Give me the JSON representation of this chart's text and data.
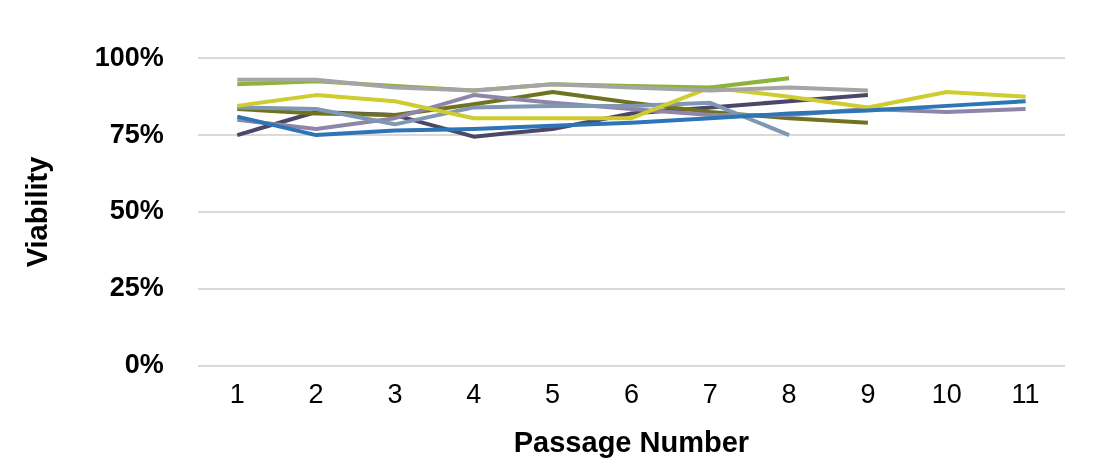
{
  "chart_data": {
    "type": "line",
    "xlabel": "Passage Number",
    "ylabel": "Viability",
    "categories": [
      "1",
      "2",
      "3",
      "4",
      "5",
      "6",
      "7",
      "8",
      "9",
      "10",
      "11"
    ],
    "ylim": [
      0,
      100
    ],
    "yticks": [
      {
        "value": 0,
        "label": "0%"
      },
      {
        "value": 25,
        "label": "25%"
      },
      {
        "value": 50,
        "label": "50%"
      },
      {
        "value": 75,
        "label": "75%"
      },
      {
        "value": 100,
        "label": "100%"
      }
    ],
    "grid": "y",
    "legend": false,
    "marker": "none",
    "line_style": "solid",
    "series": [
      {
        "color": "#2e75b6",
        "values": [
          81,
          75,
          76.5,
          77,
          78,
          79,
          80.5,
          82,
          83,
          84.5,
          86
        ]
      },
      {
        "color": "#a5a5a5",
        "values": [
          93,
          93,
          90.5,
          89.5,
          91.5,
          90.5,
          89.5,
          90.5,
          89.5,
          null,
          null
        ]
      },
      {
        "color": "#8db33a",
        "values": [
          91.5,
          92.5,
          91,
          89.5,
          91.5,
          91,
          90.5,
          93.5,
          null,
          null,
          null
        ]
      },
      {
        "color": "#cfcc2f",
        "values": [
          84.5,
          88,
          86,
          80.5,
          80.5,
          80.5,
          90.5,
          87.5,
          84,
          89,
          87.5
        ]
      },
      {
        "color": "#7f97b2",
        "values": [
          84,
          83.5,
          78.5,
          84,
          84.5,
          84.5,
          85.5,
          75,
          null,
          null,
          null
        ]
      },
      {
        "color": "#8e86a9",
        "values": [
          80,
          77,
          80.5,
          88,
          85.5,
          83.5,
          81.5,
          81.5,
          83.5,
          82.5,
          83.5
        ]
      },
      {
        "color": "#6f7320",
        "values": [
          83.5,
          82,
          81.5,
          85,
          89,
          85.5,
          82.5,
          80.5,
          79,
          null,
          null
        ]
      },
      {
        "color": "#4a4768",
        "values": [
          75,
          82.5,
          81.5,
          74.5,
          77,
          82,
          84,
          86,
          88,
          null,
          null
        ]
      }
    ]
  }
}
